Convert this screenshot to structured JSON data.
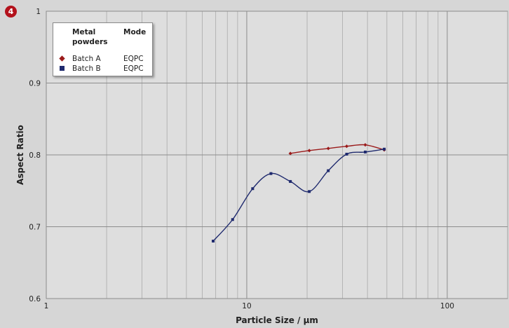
{
  "figure": {
    "badge": "4"
  },
  "chart_data": {
    "type": "line",
    "xlabel": "Particle Size / µm",
    "ylabel": "Aspect Ratio",
    "xscale": "log",
    "xlim": [
      1,
      200
    ],
    "ylim": [
      0.6,
      1.0
    ],
    "x_ticks": [
      1,
      10,
      100
    ],
    "x_tick_labels": [
      "1",
      "10",
      "100"
    ],
    "y_ticks": [
      0.6,
      0.7,
      0.8,
      0.9,
      1.0
    ],
    "y_tick_labels": [
      "0.6",
      "0.7",
      "0.8",
      "0.9",
      "1"
    ],
    "grid": true,
    "legend": {
      "placement": "top-left",
      "header_name": "Metal powders",
      "header_mode": "Mode"
    },
    "series": [
      {
        "name": "Batch A",
        "mode": "EQPC",
        "color": "#9b1b1b",
        "marker": "diamond",
        "x": [
          16.5,
          20.5,
          25.5,
          31.5,
          39,
          48.5
        ],
        "y": [
          0.802,
          0.806,
          0.809,
          0.812,
          0.814,
          0.807
        ]
      },
      {
        "name": "Batch B",
        "mode": "EQPC",
        "color": "#1f2a6e",
        "marker": "square",
        "x": [
          6.8,
          8.5,
          10.7,
          13.2,
          16.5,
          20.5,
          25.5,
          31.5,
          39,
          48.5
        ],
        "y": [
          0.68,
          0.71,
          0.753,
          0.774,
          0.763,
          0.749,
          0.778,
          0.801,
          0.804,
          0.808
        ]
      }
    ]
  }
}
